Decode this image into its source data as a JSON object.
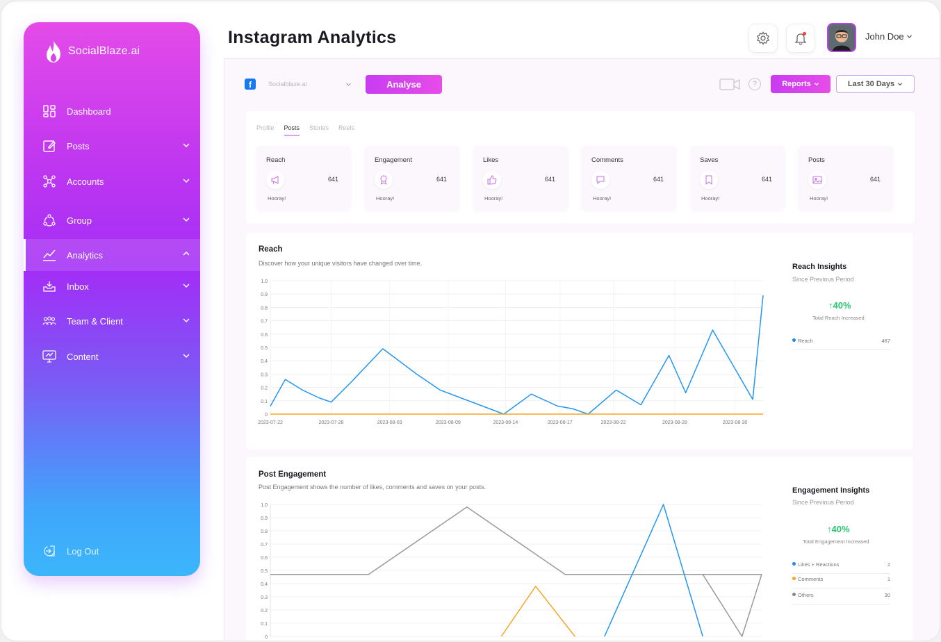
{
  "brand": {
    "name": "SocialBlaze.ai"
  },
  "sidebar": {
    "items": [
      {
        "label": "Dashboard",
        "icon": "dashboard-icon",
        "has_chevron": false
      },
      {
        "label": "Posts",
        "icon": "edit-icon",
        "has_chevron": true
      },
      {
        "label": "Accounts",
        "icon": "network-icon",
        "has_chevron": true
      },
      {
        "label": "Group",
        "icon": "group-icon",
        "has_chevron": true
      },
      {
        "label": "Analytics",
        "icon": "analytics-icon",
        "has_chevron": true,
        "active": true
      },
      {
        "label": "Inbox",
        "icon": "inbox-icon",
        "has_chevron": true
      },
      {
        "label": "Team & Client",
        "icon": "team-icon",
        "has_chevron": true
      },
      {
        "label": "Content",
        "icon": "content-icon",
        "has_chevron": true
      }
    ],
    "logout_label": "Log Out"
  },
  "header": {
    "title": "Instagram Analytics",
    "user_name": "John Doe"
  },
  "toolbar": {
    "account_value": "Socialblaze.ai",
    "analyse_label": "Analyse",
    "help_glyph": "?",
    "reports_label": "Reports",
    "range_label": "Last 30 Days"
  },
  "tabs": [
    "Profile",
    "Posts",
    "Stories",
    "Reels"
  ],
  "active_tab": "Posts",
  "stats": [
    {
      "label": "Reach",
      "value": "641",
      "note": "Hooray!"
    },
    {
      "label": "Engagement",
      "value": "641",
      "note": "Hooray!"
    },
    {
      "label": "Likes",
      "value": "641",
      "note": "Hooray!"
    },
    {
      "label": "Comments",
      "value": "641",
      "note": "Hooray!"
    },
    {
      "label": "Saves",
      "value": "641",
      "note": "Hooray!"
    },
    {
      "label": "Posts",
      "value": "641",
      "note": "Hooray!"
    }
  ],
  "reach_card": {
    "title": "Reach",
    "subtitle": "Discover how your unique visitors have changed over time.",
    "insights_title": "Reach Insights",
    "insights_sub": "Since Previous Period",
    "pct": "40%",
    "pct_note": "Total Reach Increased",
    "legend": [
      {
        "label": "Reach",
        "value": "487",
        "color": "#1e88e5"
      }
    ]
  },
  "engagement_card": {
    "title": "Post Engagement",
    "subtitle": "Post Engagement shows the number of likes, comments and saves on your posts.",
    "insights_title": "Engagement Insights",
    "insights_sub": "Since Previous Period",
    "pct": "40%",
    "pct_note": "Total Engagement Increased",
    "legend": [
      {
        "label": "Likes + Reactions",
        "value": "2",
        "color": "#1e88e5"
      },
      {
        "label": "Comments",
        "value": "1",
        "color": "#f5a623"
      },
      {
        "label": "Others",
        "value": "30",
        "color": "#888888"
      }
    ]
  },
  "chart_data": [
    {
      "type": "line",
      "ylim": [
        0,
        1.0
      ],
      "yticks": [
        "0",
        "0.1",
        "0.2",
        "0.3",
        "0.4",
        "0.5",
        "0.6",
        "0.7",
        "0.8",
        "0.9",
        "1.0"
      ],
      "xticks": [
        "2023-07-22",
        "2023-07-28",
        "2023-08-03",
        "2023-08-09",
        "2023-08-14",
        "2023-08-17",
        "2023-08-22",
        "2023-08-28",
        "2023-08-30"
      ],
      "grid": true,
      "series": [
        {
          "color": "#2196f3",
          "x": [
            0,
            0.26,
            0.56,
            0.86,
            1.06,
            1.41,
            1.96,
            2.55,
            2.96,
            4.07,
            4.55,
            5.01,
            5.27,
            5.54,
            6.03,
            6.46,
            6.95,
            7.24,
            7.71,
            8.41,
            8.59
          ],
          "values": [
            0.06,
            0.26,
            0.18,
            0.12,
            0.09,
            0.24,
            0.49,
            0.3,
            0.18,
            0.0,
            0.15,
            0.06,
            0.04,
            0.0,
            0.18,
            0.07,
            0.44,
            0.16,
            0.63,
            0.11,
            0.89
          ]
        },
        {
          "color": "#f5a623",
          "x": [
            0,
            8.59
          ],
          "values": [
            0,
            0
          ]
        }
      ]
    },
    {
      "type": "line",
      "ylim": [
        0,
        1.0
      ],
      "yticks": [
        "0",
        "0.1",
        "0.2",
        "0.3",
        "0.4",
        "0.5",
        "0.6",
        "0.7",
        "0.8",
        "0.9",
        "1.0"
      ],
      "grid": true,
      "series": [
        {
          "color": "#999999",
          "x": [
            0,
            0.2,
            0.4,
            0.6,
            0.8,
            1.0
          ],
          "values": [
            0.47,
            0.47,
            0.98,
            0.47,
            0.47,
            0.47
          ]
        },
        {
          "color": "#f5a623",
          "x": [
            0.47,
            0.54,
            0.62
          ],
          "values": [
            0.0,
            0.38,
            0.0
          ]
        },
        {
          "color": "#2196f3",
          "x": [
            0.68,
            0.8,
            0.88
          ],
          "values": [
            0.0,
            1.0,
            0.0
          ]
        },
        {
          "color": "#999999",
          "x": [
            0.88,
            0.96,
            1.0
          ],
          "values": [
            0.47,
            0.0,
            0.47
          ]
        }
      ]
    }
  ]
}
